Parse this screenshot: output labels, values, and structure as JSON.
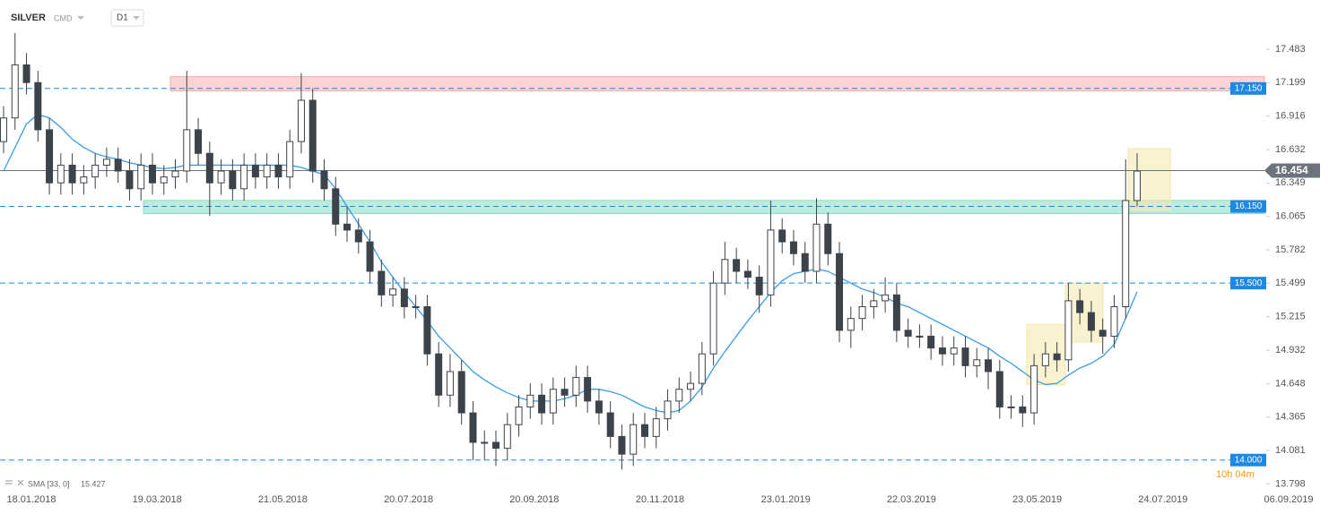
{
  "chart_data": {
    "type": "candlestick",
    "symbol": "SILVER",
    "market": "CMD",
    "timeframe": "D1",
    "ylim": [
      13.74,
      17.9
    ],
    "yticks": [
      17.483,
      17.199,
      16.916,
      16.632,
      16.349,
      16.065,
      15.782,
      15.499,
      15.215,
      14.932,
      14.648,
      14.365,
      14.081,
      13.798
    ],
    "x_labels": [
      "18.01.2018",
      "19.03.2018",
      "21.05.2018",
      "20.07.2018",
      "20.09.2018",
      "20.11.2018",
      "23.01.2019",
      "22.03.2019",
      "23.05.2019",
      "24.07.2019",
      "06.09.2019"
    ],
    "color_up": "#ffffff",
    "color_down": "#3d434b",
    "open": [
      16.7,
      16.9,
      17.35,
      17.2,
      16.8,
      16.35,
      16.5,
      16.35,
      16.4,
      16.5,
      16.55,
      16.45,
      16.3,
      16.5,
      16.35,
      16.4,
      16.45,
      16.8,
      16.6,
      16.35,
      16.45,
      16.3,
      16.5,
      16.4,
      16.5,
      16.4,
      16.7,
      17.05,
      16.45,
      16.3,
      16.0,
      15.95,
      15.85,
      15.6,
      15.4,
      15.45,
      15.3,
      15.3,
      14.9,
      14.55,
      14.75,
      14.4,
      14.15,
      14.15,
      14.1,
      14.3,
      14.45,
      14.55,
      14.4,
      14.6,
      14.55,
      14.7,
      14.5,
      14.4,
      14.2,
      14.05,
      14.3,
      14.2,
      14.35,
      14.5,
      14.6,
      14.65,
      14.9,
      15.5,
      15.7,
      15.6,
      15.55,
      15.4,
      15.95,
      15.85,
      15.75,
      15.6,
      16.0,
      15.75,
      15.1,
      15.2,
      15.3,
      15.35,
      15.4,
      15.1,
      15.05,
      15.05,
      14.95,
      14.9,
      14.95,
      14.8,
      14.85,
      14.75,
      14.45,
      14.45,
      14.4,
      14.8,
      14.9,
      14.85,
      15.35,
      15.25,
      15.1,
      15.05,
      15.3,
      16.2
    ],
    "high": [
      17.0,
      17.62,
      17.45,
      17.3,
      16.9,
      16.6,
      16.6,
      16.5,
      16.6,
      16.65,
      16.65,
      16.55,
      16.6,
      16.6,
      16.5,
      16.55,
      17.3,
      16.9,
      16.7,
      16.55,
      16.55,
      16.6,
      16.6,
      16.6,
      16.6,
      16.8,
      17.28,
      17.15,
      16.55,
      16.4,
      16.15,
      16.05,
      15.95,
      15.7,
      15.55,
      15.55,
      15.4,
      15.4,
      15.0,
      14.9,
      14.85,
      14.5,
      14.25,
      14.25,
      14.4,
      14.55,
      14.65,
      14.65,
      14.7,
      14.7,
      14.8,
      14.8,
      14.6,
      14.5,
      14.3,
      14.4,
      14.4,
      14.45,
      14.6,
      14.7,
      14.75,
      15.0,
      15.6,
      15.85,
      15.8,
      15.7,
      15.65,
      16.2,
      16.05,
      15.95,
      15.85,
      16.22,
      16.1,
      15.85,
      15.3,
      15.4,
      15.45,
      15.55,
      15.5,
      15.2,
      15.15,
      15.15,
      15.05,
      15.05,
      15.05,
      14.95,
      14.95,
      14.85,
      14.55,
      14.55,
      14.9,
      15.0,
      15.0,
      15.5,
      15.45,
      15.35,
      15.2,
      15.4,
      16.55,
      16.6
    ],
    "low": [
      16.6,
      16.8,
      17.1,
      16.7,
      16.25,
      16.25,
      16.25,
      16.25,
      16.3,
      16.4,
      16.35,
      16.2,
      16.2,
      16.25,
      16.25,
      16.3,
      16.35,
      16.5,
      16.07,
      16.25,
      16.2,
      16.2,
      16.3,
      16.3,
      16.3,
      16.3,
      16.6,
      16.35,
      16.2,
      15.9,
      15.85,
      15.75,
      15.5,
      15.3,
      15.3,
      15.2,
      15.2,
      14.8,
      14.45,
      14.45,
      14.3,
      14.0,
      14.0,
      13.95,
      14.0,
      14.2,
      14.35,
      14.3,
      14.3,
      14.45,
      14.45,
      14.4,
      14.3,
      14.1,
      13.92,
      13.95,
      14.1,
      14.1,
      14.25,
      14.4,
      14.5,
      14.55,
      14.8,
      15.4,
      15.5,
      15.45,
      15.25,
      15.3,
      15.75,
      15.65,
      15.5,
      15.5,
      15.65,
      15.0,
      14.95,
      15.1,
      15.2,
      15.25,
      15.0,
      14.95,
      14.95,
      14.85,
      14.8,
      14.8,
      14.7,
      14.7,
      14.6,
      14.35,
      14.35,
      14.28,
      14.3,
      14.7,
      14.75,
      14.75,
      15.15,
      15.0,
      14.9,
      14.95,
      15.2,
      16.15
    ],
    "close": [
      16.9,
      17.35,
      17.2,
      16.8,
      16.35,
      16.5,
      16.35,
      16.4,
      16.5,
      16.55,
      16.45,
      16.3,
      16.5,
      16.35,
      16.4,
      16.45,
      16.8,
      16.6,
      16.35,
      16.45,
      16.3,
      16.5,
      16.4,
      16.5,
      16.4,
      16.7,
      17.05,
      16.45,
      16.3,
      16.0,
      15.95,
      15.85,
      15.6,
      15.4,
      15.45,
      15.3,
      15.3,
      14.9,
      14.55,
      14.75,
      14.4,
      14.15,
      14.15,
      14.1,
      14.3,
      14.45,
      14.55,
      14.4,
      14.6,
      14.55,
      14.7,
      14.5,
      14.4,
      14.2,
      14.05,
      14.3,
      14.2,
      14.35,
      14.5,
      14.6,
      14.65,
      14.9,
      15.5,
      15.7,
      15.6,
      15.55,
      15.4,
      15.95,
      15.85,
      15.75,
      15.6,
      16.0,
      15.75,
      15.1,
      15.2,
      15.3,
      15.35,
      15.4,
      15.1,
      15.05,
      15.05,
      14.95,
      14.9,
      14.95,
      14.8,
      14.85,
      14.75,
      14.45,
      14.45,
      14.4,
      14.8,
      14.9,
      14.85,
      15.35,
      15.25,
      15.1,
      15.05,
      15.3,
      16.2,
      16.45
    ],
    "sma": {
      "name": "SMA [33, 0]",
      "color": "#3d9be9",
      "values": [
        16.45,
        16.65,
        16.85,
        16.93,
        16.9,
        16.82,
        16.72,
        16.65,
        16.6,
        16.57,
        16.55,
        16.52,
        16.5,
        16.48,
        16.47,
        16.48,
        16.5,
        16.5,
        16.5,
        16.5,
        16.5,
        16.5,
        16.5,
        16.5,
        16.5,
        16.5,
        16.48,
        16.45,
        16.42,
        16.3,
        16.15,
        16.0,
        15.85,
        15.68,
        15.55,
        15.42,
        15.3,
        15.18,
        15.05,
        14.95,
        14.85,
        14.75,
        14.68,
        14.62,
        14.57,
        14.53,
        14.5,
        14.5,
        14.5,
        14.52,
        14.55,
        14.6,
        14.6,
        14.58,
        14.55,
        14.5,
        14.45,
        14.42,
        14.4,
        14.42,
        14.5,
        14.62,
        14.78,
        14.92,
        15.05,
        15.18,
        15.3,
        15.42,
        15.52,
        15.58,
        15.6,
        15.62,
        15.6,
        15.55,
        15.5,
        15.45,
        15.42,
        15.38,
        15.33,
        15.3,
        15.25,
        15.2,
        15.15,
        15.1,
        15.05,
        15.0,
        14.95,
        14.88,
        14.82,
        14.75,
        14.68,
        14.64,
        14.65,
        14.72,
        14.78,
        14.82,
        14.88,
        14.98,
        15.2,
        15.427
      ]
    },
    "levels": [
      {
        "value": 17.15,
        "label": "17.150"
      },
      {
        "value": 16.15,
        "label": "16.150"
      },
      {
        "value": 15.5,
        "label": "15.500"
      },
      {
        "value": 14.0,
        "label": "14.000"
      }
    ],
    "level_color": "#1e88e5",
    "current_price": 16.454,
    "zones": [
      {
        "range": [
          17.13,
          17.25
        ],
        "color": "#f7b5b8"
      },
      {
        "range": [
          16.09,
          16.2
        ],
        "color": "#8fe0c8"
      },
      {
        "range": [
          14.64,
          15.15
        ],
        "color": "#f5eab0"
      },
      {
        "range": [
          15.0,
          15.5
        ],
        "color": "#f5eab0"
      },
      {
        "range": [
          16.12,
          16.64
        ],
        "color": "#f5eab0"
      }
    ],
    "countdown": "10h 04m"
  }
}
